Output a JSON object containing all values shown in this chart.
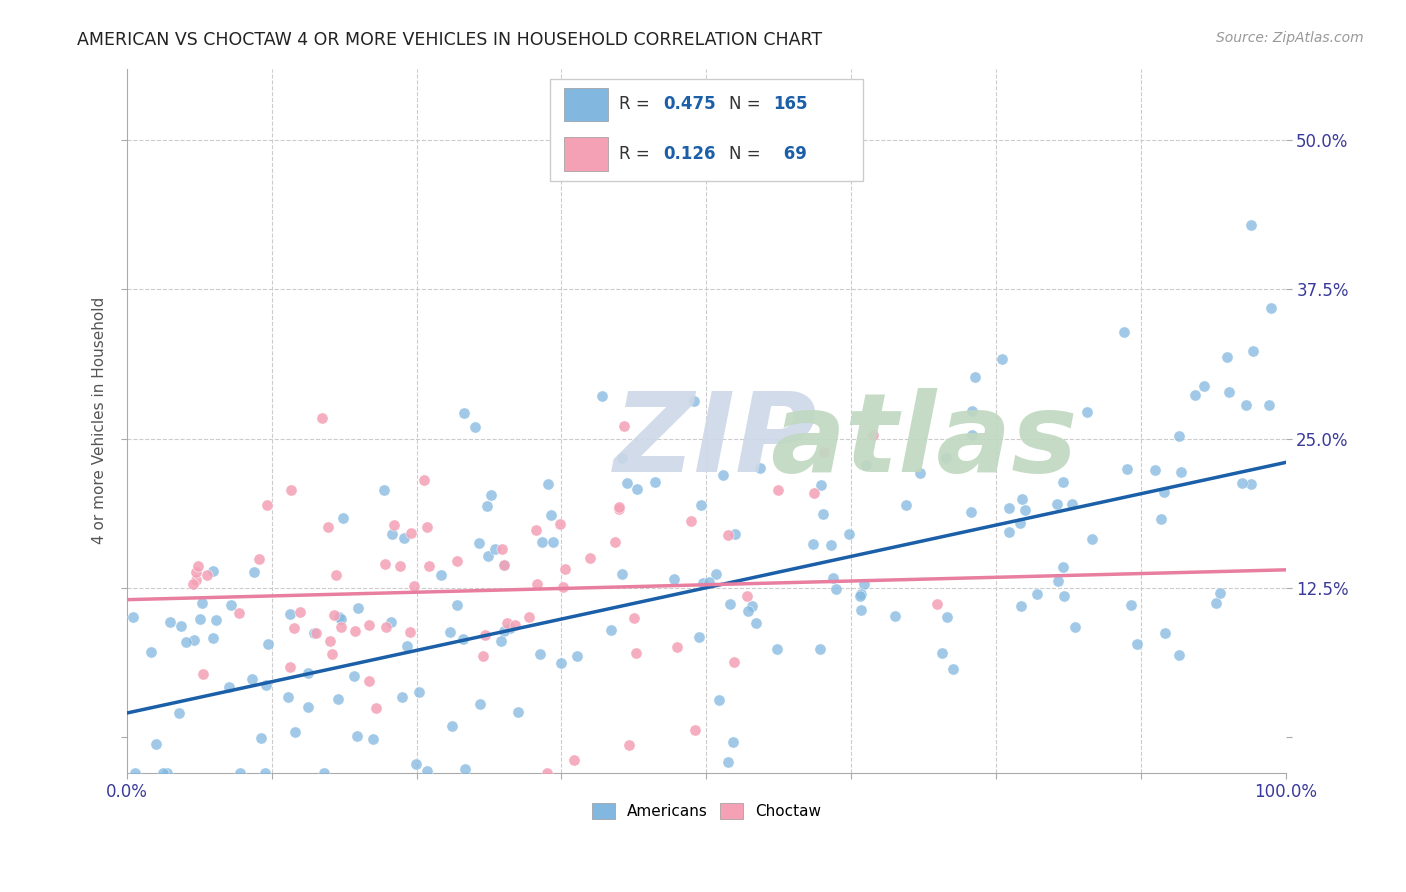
{
  "title": "AMERICAN VS CHOCTAW 4 OR MORE VEHICLES IN HOUSEHOLD CORRELATION CHART",
  "source": "Source: ZipAtlas.com",
  "ylabel": "4 or more Vehicles in Household",
  "r_american": 0.475,
  "n_american": 165,
  "r_choctaw": 0.126,
  "n_choctaw": 69,
  "american_color": "#82b8e0",
  "choctaw_color": "#f4a0b5",
  "american_line_color": "#1a5fa8",
  "choctaw_line_color": "#e87fa0",
  "grid_color": "#cccccc",
  "title_color": "#222222",
  "axis_label_color": "#3a3a9a",
  "watermark_zip_color": "#ccd8e8",
  "watermark_atlas_color": "#c0d8c0",
  "legend_value_color": "#1a5fa8",
  "xlim": [
    0.0,
    1.0
  ],
  "ylim": [
    -0.03,
    0.56
  ],
  "ytick_positions": [
    0.0,
    0.125,
    0.25,
    0.375,
    0.5
  ],
  "xtick_positions": [
    0.0,
    0.125,
    0.25,
    0.375,
    0.5,
    0.625,
    0.75,
    0.875,
    1.0
  ],
  "am_slope": 0.21,
  "am_intercept": 0.02,
  "ch_slope": 0.025,
  "ch_intercept": 0.115
}
